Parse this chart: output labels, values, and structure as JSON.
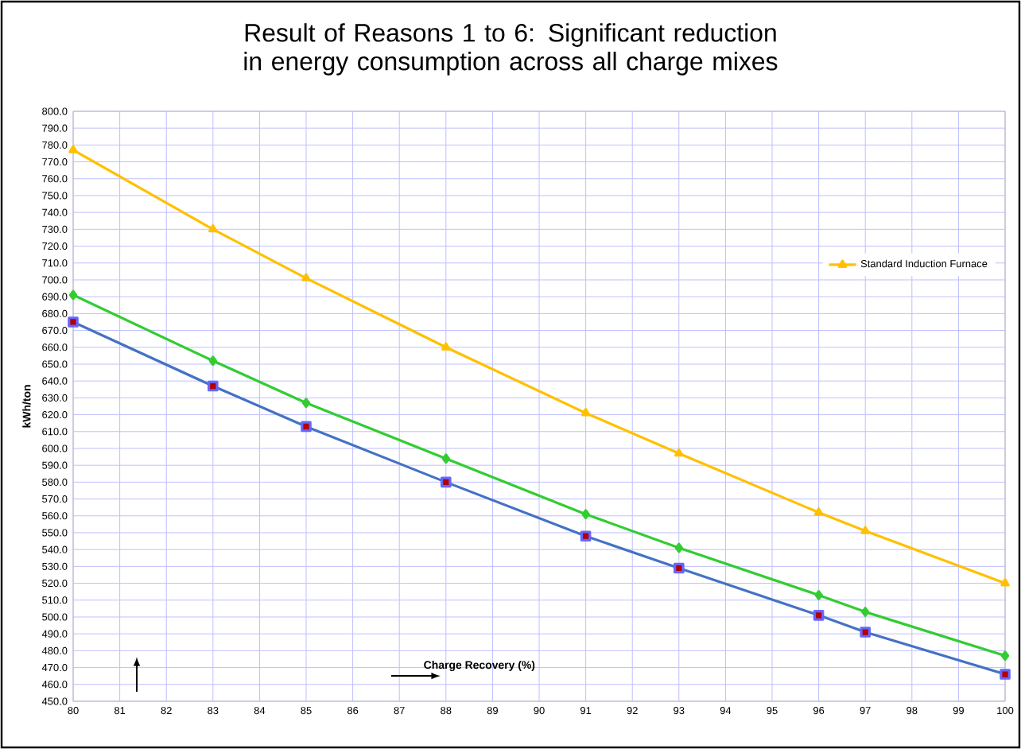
{
  "chart_data": {
    "type": "line",
    "title": "Result of Reasons 1 to 6: Significant reduction in energy consumption across all charge mixes",
    "xlabel": "Charge Recovery (%)",
    "ylabel": "kWh/ton",
    "x": [
      80,
      83,
      85,
      88,
      91,
      93,
      96,
      97,
      100
    ],
    "series": [
      {
        "color": "#4472c4",
        "marker": "square",
        "values": [
          675,
          637,
          613,
          580,
          548,
          529,
          501,
          491,
          466
        ]
      },
      {
        "color": "#33cc33",
        "marker": "diamond",
        "values": [
          691,
          652,
          627,
          594,
          561,
          541,
          513,
          503,
          477
        ]
      },
      {
        "name": "Standard Induction Furnace",
        "color": "#ffc000",
        "marker": "triangle",
        "values": [
          777,
          730,
          701,
          660,
          621,
          597,
          562,
          551,
          520
        ]
      }
    ],
    "xlim": [
      80,
      100
    ],
    "xticks": [
      80,
      81,
      82,
      83,
      84,
      85,
      86,
      87,
      88,
      89,
      90,
      91,
      92,
      93,
      94,
      95,
      96,
      97,
      98,
      99,
      100
    ],
    "ylim": [
      450,
      800
    ],
    "yticks": [
      {
        "value": 450,
        "label": "450.0"
      },
      {
        "value": 460,
        "label": "460.0"
      },
      {
        "value": 470,
        "label": "470.0"
      },
      {
        "value": 480,
        "label": "480.0"
      },
      {
        "value": 490,
        "label": "490.0"
      },
      {
        "value": 500,
        "label": "500.0"
      },
      {
        "value": 510,
        "label": "510.0"
      },
      {
        "value": 520,
        "label": "520.0"
      },
      {
        "value": 530,
        "label": "530.0"
      },
      {
        "value": 540,
        "label": "540.0"
      },
      {
        "value": 550,
        "label": "550.0"
      },
      {
        "value": 560,
        "label": "560.0"
      },
      {
        "value": 570,
        "label": "570.0"
      },
      {
        "value": 580,
        "label": "580.0"
      },
      {
        "value": 590,
        "label": "590.0"
      },
      {
        "value": 600,
        "label": "600.0"
      },
      {
        "value": 610,
        "label": "610.0"
      },
      {
        "value": 620,
        "label": "620.0"
      },
      {
        "value": 630,
        "label": "630.0"
      },
      {
        "value": 640,
        "label": "640.0"
      },
      {
        "value": 650,
        "label": "650.0"
      },
      {
        "value": 660,
        "label": "660.0"
      },
      {
        "value": 670,
        "label": "670.0"
      },
      {
        "value": 680,
        "label": "680.0"
      },
      {
        "value": 690,
        "label": "690.0"
      },
      {
        "value": 700,
        "label": "700.0"
      },
      {
        "value": 710,
        "label": "710.0"
      },
      {
        "value": 720,
        "label": "720.0"
      },
      {
        "value": 730,
        "label": "730.0"
      },
      {
        "value": 740,
        "label": "740.0"
      },
      {
        "value": 750,
        "label": "750.0"
      },
      {
        "value": 760,
        "label": "760.0"
      },
      {
        "value": 770,
        "label": "770.0"
      },
      {
        "value": 780,
        "label": "780.0"
      },
      {
        "value": 790,
        "label": "790.0"
      },
      {
        "value": 800,
        "label": "800.0"
      }
    ],
    "grid": true,
    "legend": "right",
    "line_style": "solid"
  }
}
